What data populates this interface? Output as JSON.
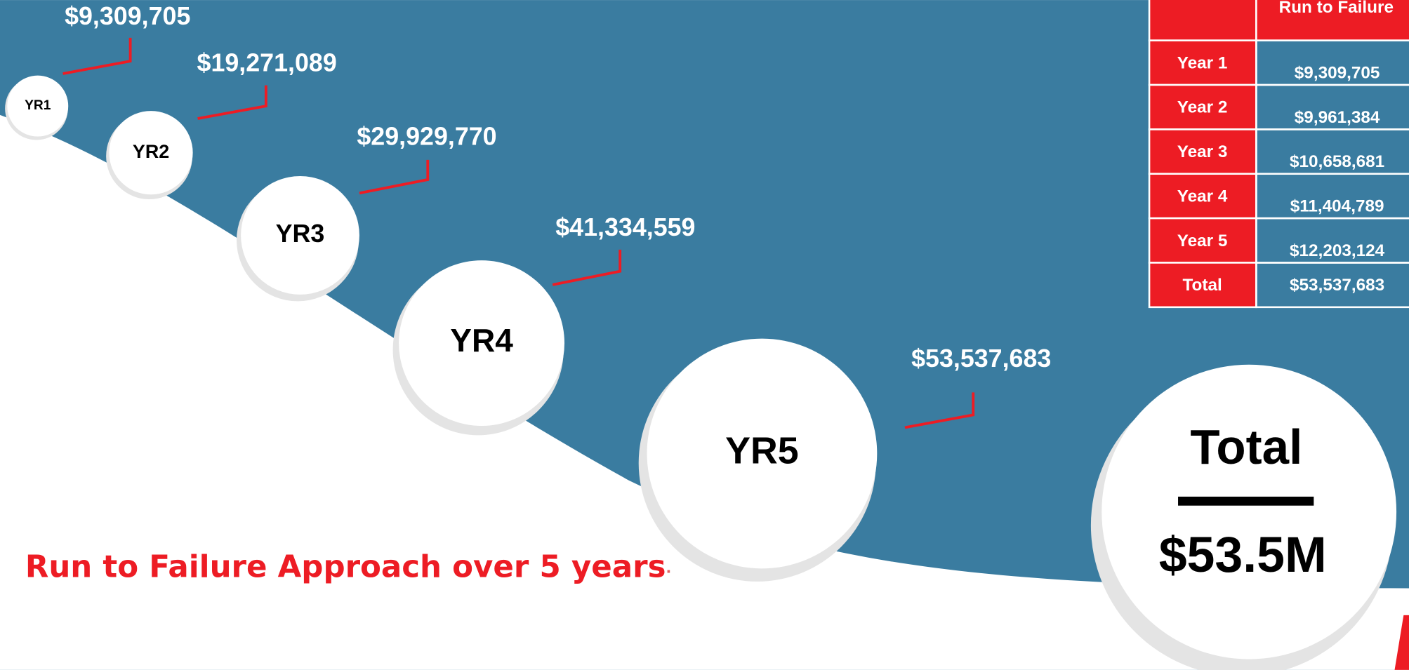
{
  "bubbles": [
    {
      "label": "YR1",
      "value": "$9,309,705"
    },
    {
      "label": "YR2",
      "value": "$19,271,089"
    },
    {
      "label": "YR3",
      "value": "$29,929,770"
    },
    {
      "label": "YR4",
      "value": "$41,334,559"
    },
    {
      "label": "YR5",
      "value": "$53,537,683"
    }
  ],
  "total": {
    "label": "Total",
    "value": "$53.5M"
  },
  "caption": {
    "text": "Run to Failure Approach over 5 years",
    "end": "."
  },
  "table": {
    "header": "Run to Failure",
    "rows": [
      [
        "Year 1",
        "$9,309,705"
      ],
      [
        "Year 2",
        "$9,961,384"
      ],
      [
        "Year 3",
        "$10,658,681"
      ],
      [
        "Year 4",
        "$11,404,789"
      ],
      [
        "Year 5",
        "$12,203,124"
      ],
      [
        "Total",
        "$53,537,683"
      ]
    ]
  }
}
